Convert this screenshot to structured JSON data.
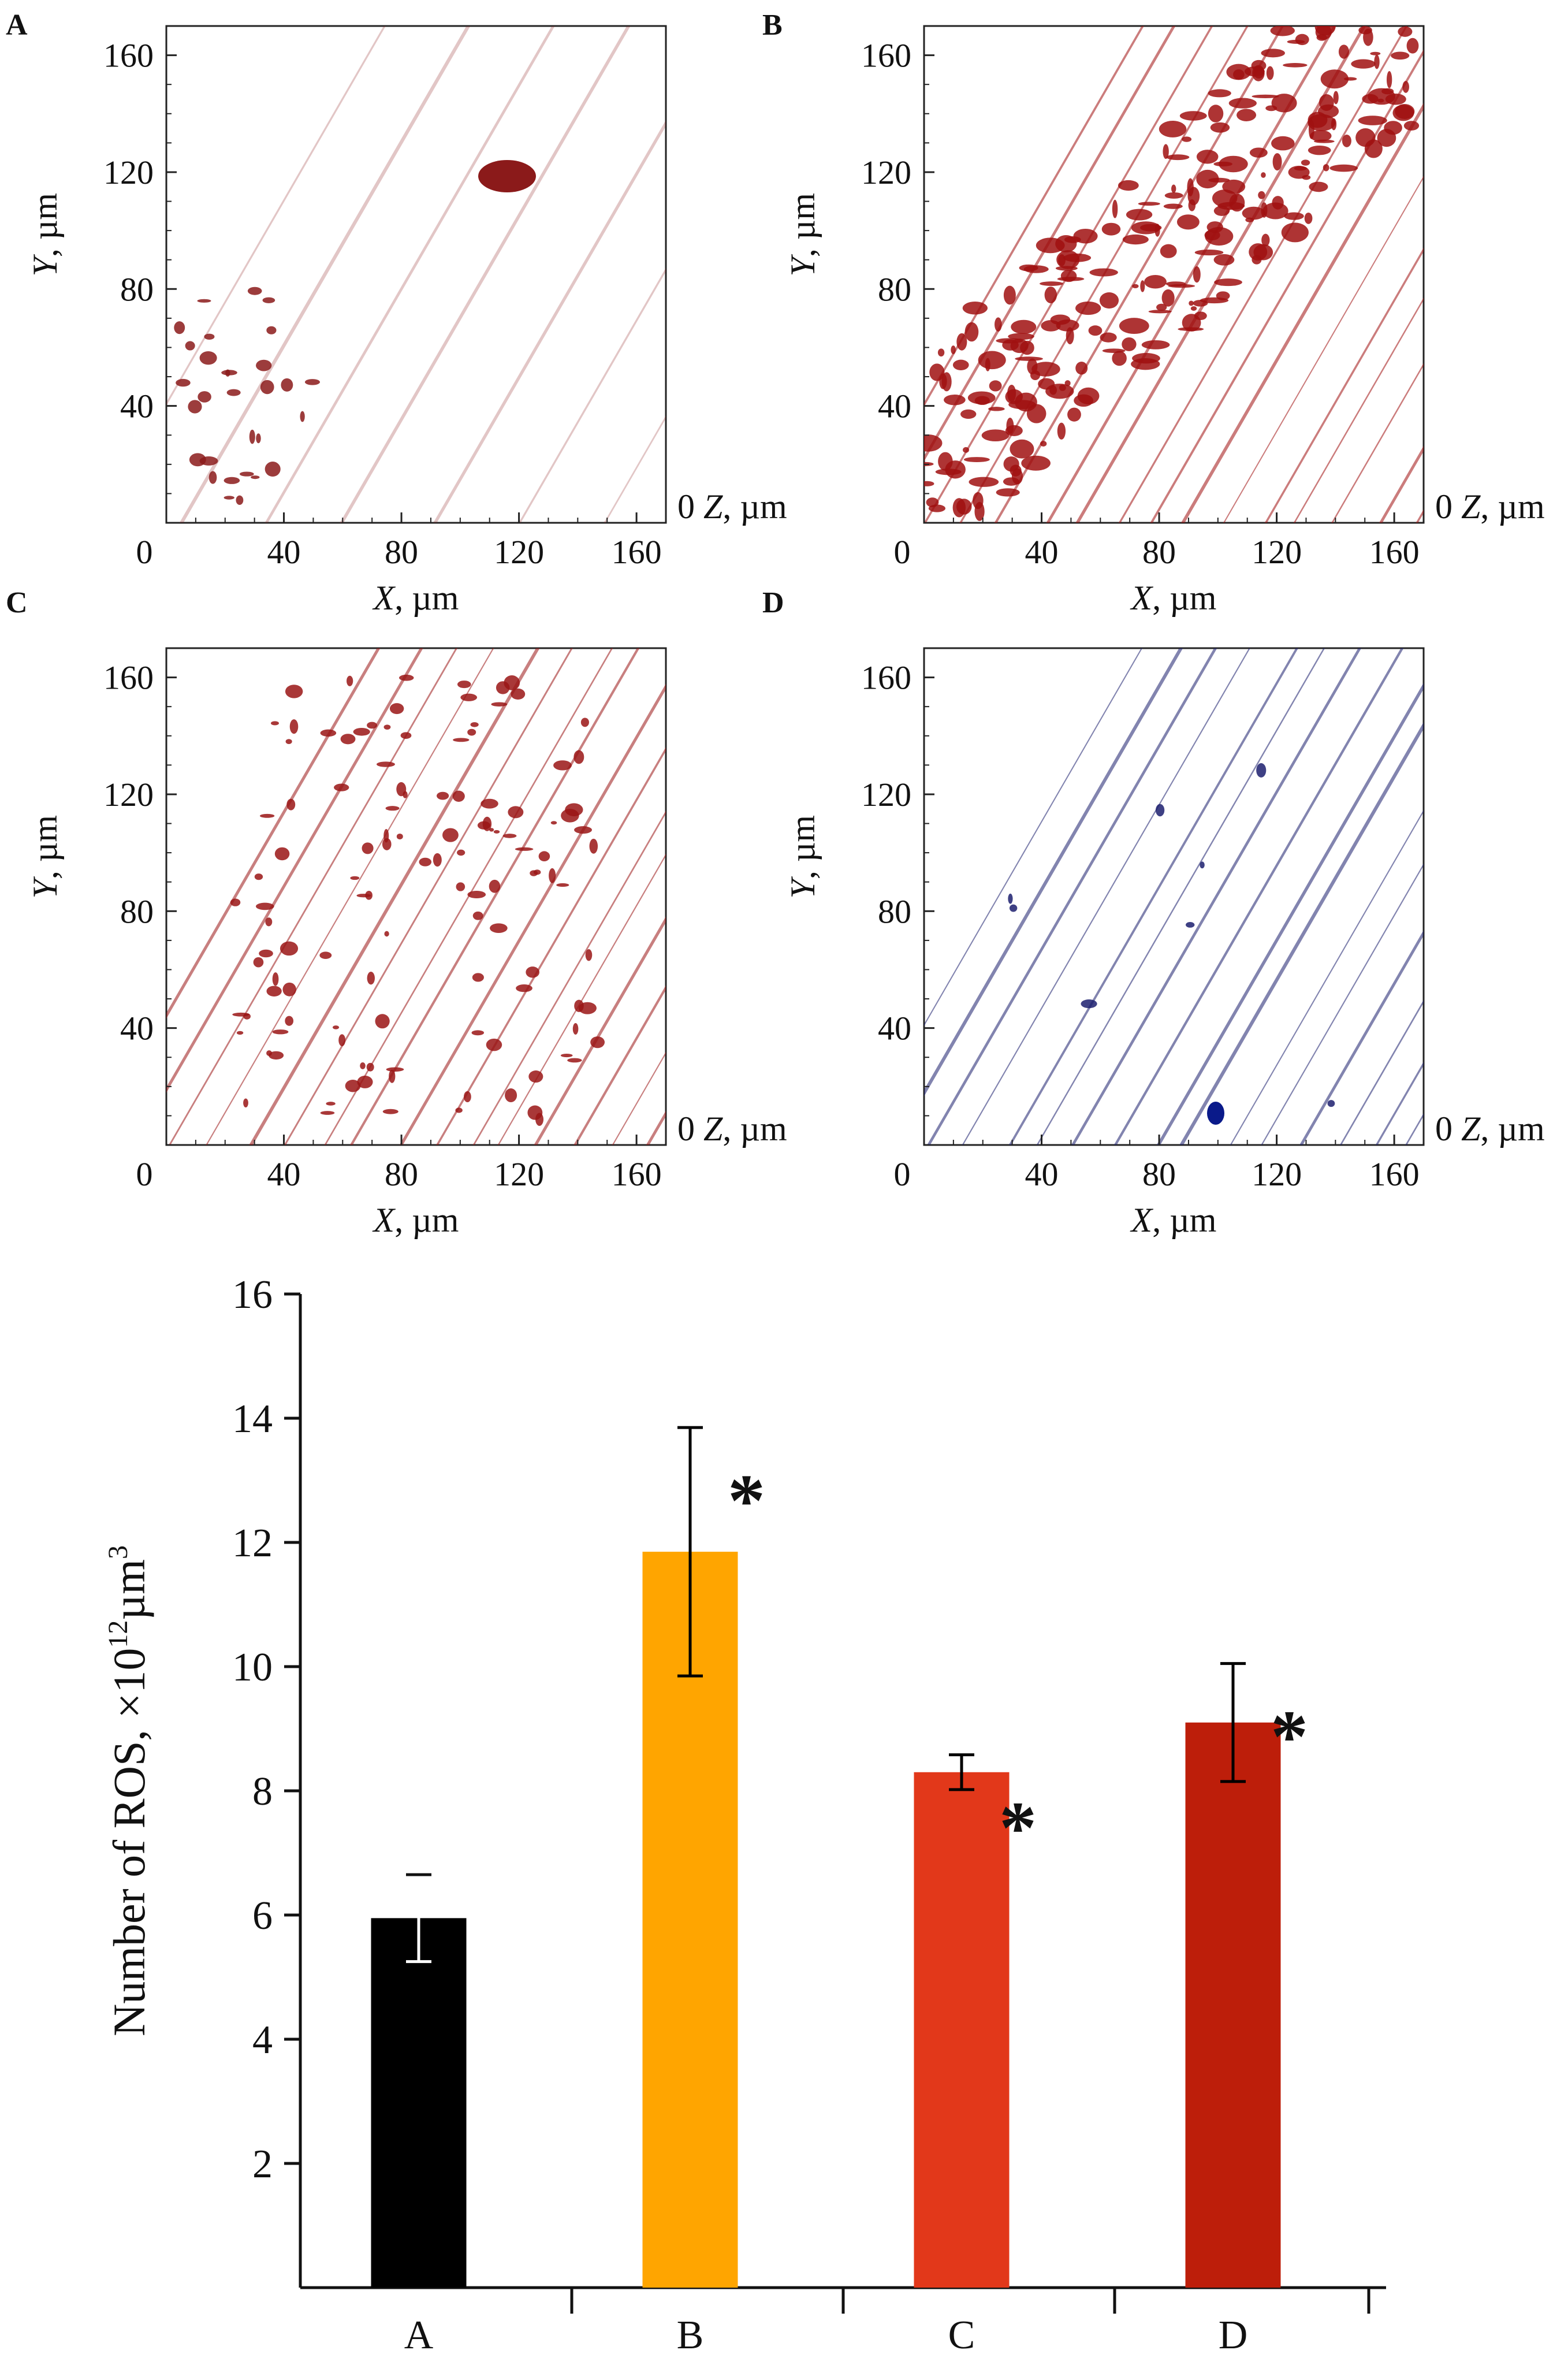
{
  "panels": [
    {
      "letter": "A",
      "title": "",
      "stain": "#8b1a1a"
    },
    {
      "letter": "B",
      "title": "",
      "stain": "#a01010"
    },
    {
      "letter": "C",
      "title": "",
      "stain": "#9a1515"
    },
    {
      "letter": "D",
      "title": "",
      "stain": "#1c1f6e"
    }
  ],
  "microscopy_axes": {
    "y_label_var": "Y",
    "y_label_unit": ", µm",
    "x_label_var": "X",
    "x_label_unit": ", µm",
    "z_label_zero": "0",
    "z_label_var": "Z",
    "z_label_unit": ", µm",
    "y_ticks": [
      "40",
      "80",
      "120",
      "160"
    ],
    "x_ticks": [
      "0",
      "40",
      "80",
      "120",
      "160"
    ]
  },
  "colors": {
    "A": "#000000",
    "B": "#FFA500",
    "C": "#E2381A",
    "D": "#BD1E0A",
    "error_bar_on_dark": "#ffffff",
    "error_bar": "#000000"
  },
  "chart_data": {
    "type": "bar",
    "title": "",
    "categories": [
      "A",
      "B",
      "C",
      "D"
    ],
    "values": [
      5.95,
      11.85,
      8.3,
      9.1
    ],
    "errors": [
      0.7,
      2.0,
      0.28,
      0.95
    ],
    "significance": [
      "",
      "*",
      "*",
      "*"
    ],
    "ylabel": "Number of ROS, ×10",
    "ylabel_sup1": "12",
    "ylabel_mid": "µm",
    "ylabel_sup2": "3",
    "xlabel": "",
    "ylim": [
      0,
      16
    ],
    "yticks": [
      2,
      4,
      6,
      8,
      10,
      12,
      14,
      16
    ]
  }
}
